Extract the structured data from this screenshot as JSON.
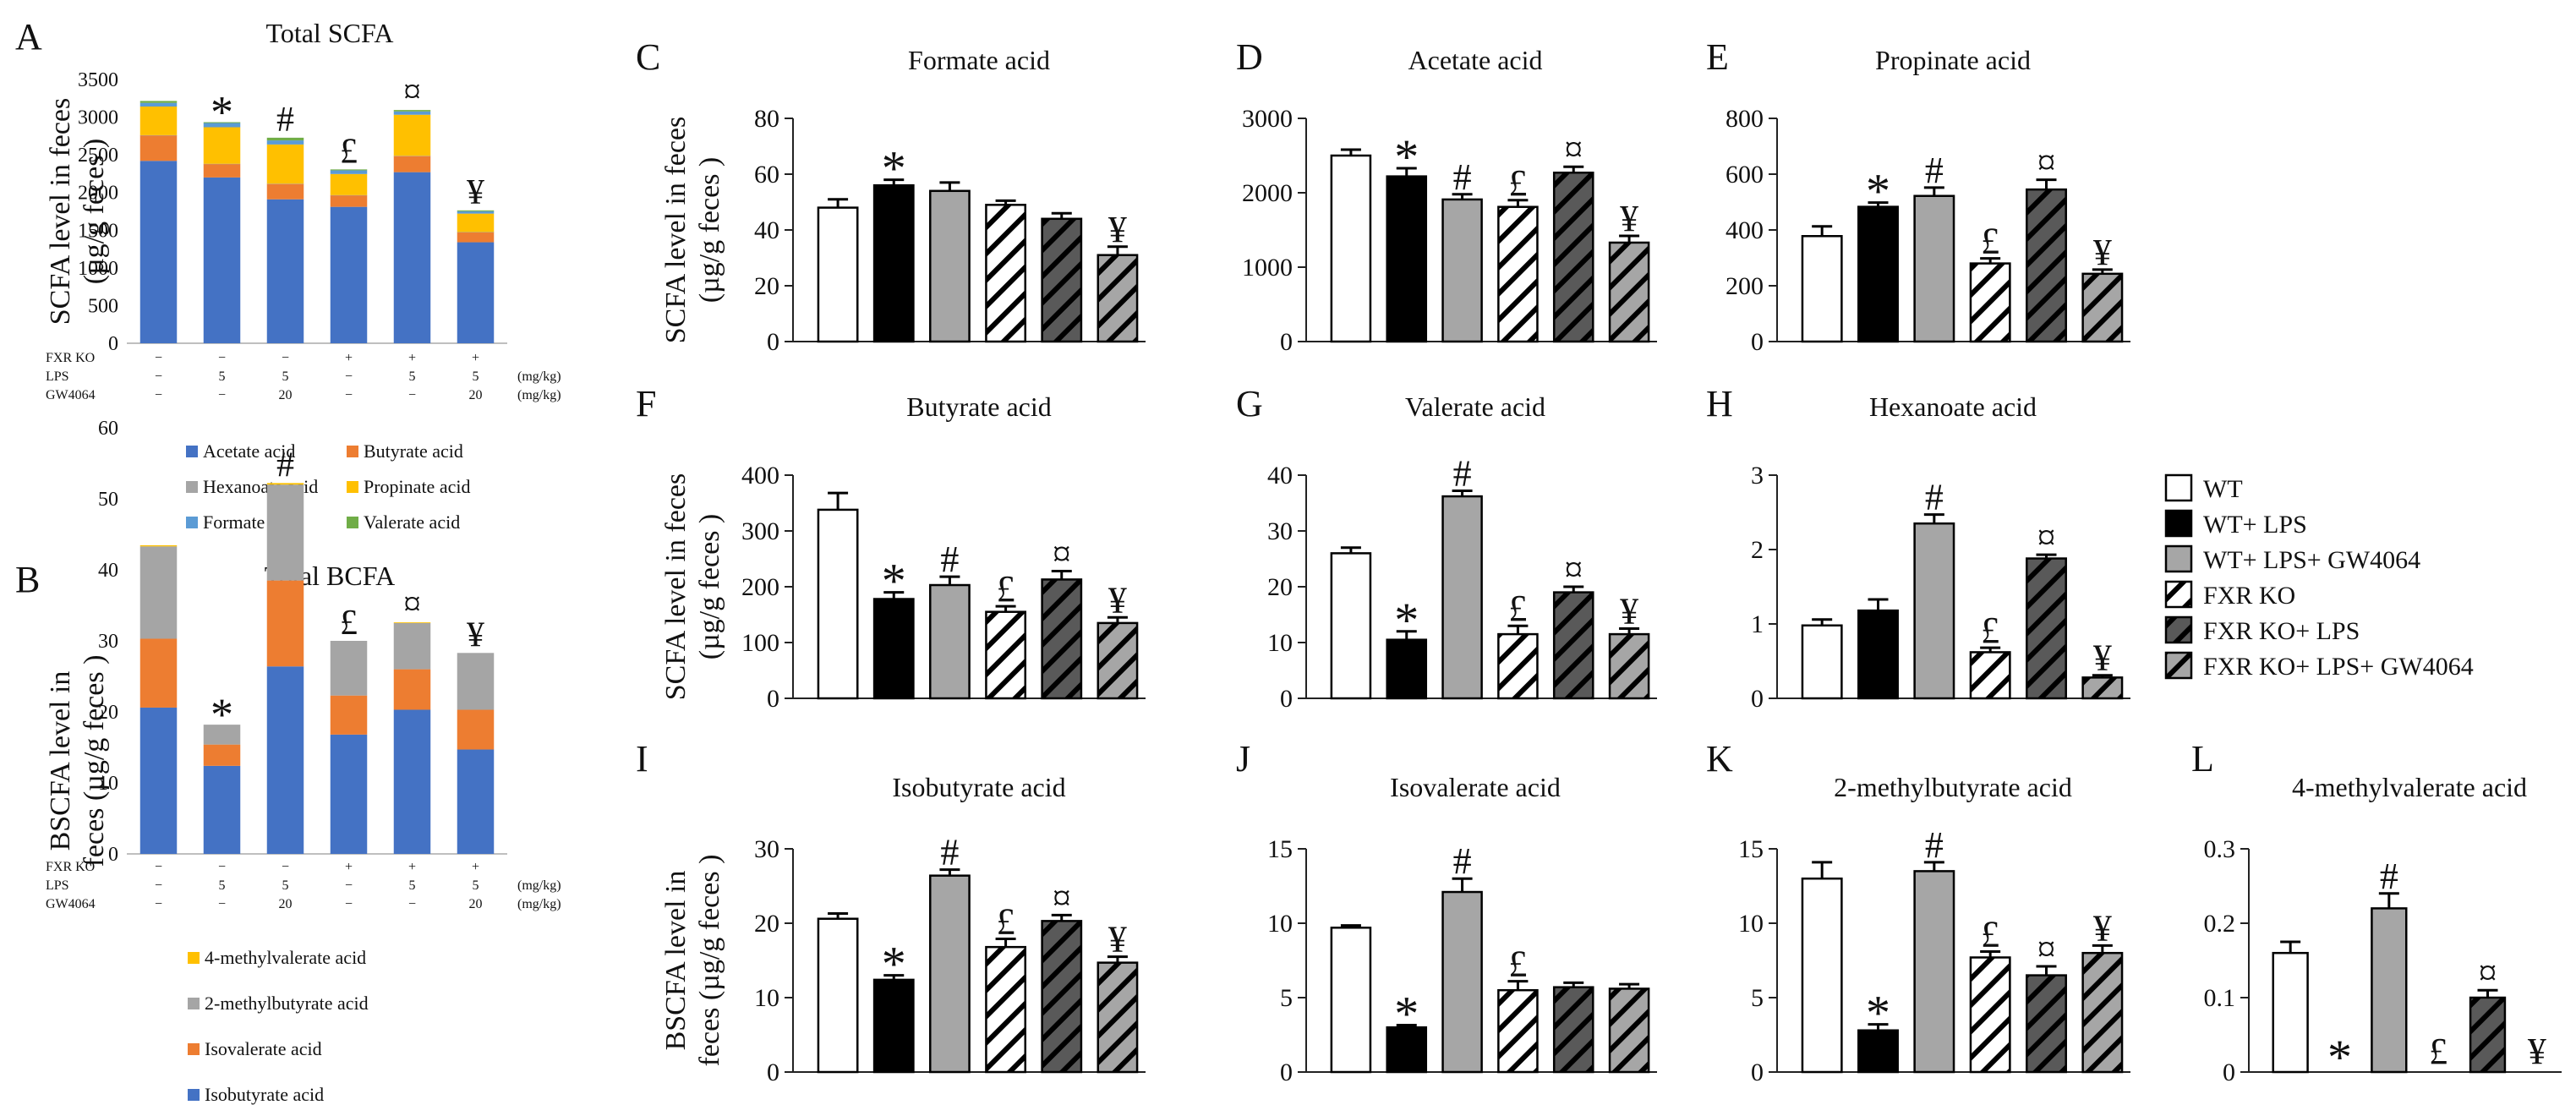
{
  "figure": {
    "panels": {
      "A": {
        "letter": "A",
        "title": "Total SCFA",
        "ylabel_lines": [
          "SCFA level in feces",
          "(µg/g feces )"
        ]
      },
      "B": {
        "letter": "B",
        "title": "Total BCFA",
        "ylabel_lines": [
          "BSCFA level in",
          "feces (µg/g feces )"
        ]
      },
      "C": {
        "letter": "C",
        "title": "Formate acid"
      },
      "D": {
        "letter": "D",
        "title": "Acetate acid"
      },
      "E": {
        "letter": "E",
        "title": "Propinate acid"
      },
      "F": {
        "letter": "F",
        "title": "Butyrate acid"
      },
      "G": {
        "letter": "G",
        "title": "Valerate acid"
      },
      "H": {
        "letter": "H",
        "title": "Hexanoate acid"
      },
      "I": {
        "letter": "I",
        "title": "Isobutyrate acid"
      },
      "J": {
        "letter": "J",
        "title": "Isovalerate acid"
      },
      "K": {
        "letter": "K",
        "title": "2-methylbutyrate acid"
      },
      "L": {
        "letter": "L",
        "title": "4-methylvalerate acid"
      }
    },
    "row_labels": {
      "scfa": [
        "SCFA level in feces",
        "(µg/g feces )"
      ],
      "bcfa": [
        "BSCFA level in",
        "feces (µg/g feces )"
      ]
    },
    "treatment_table": {
      "rows": [
        "FXR KO",
        "LPS",
        "GW4064"
      ],
      "units": [
        "",
        "(mg/kg)",
        "(mg/kg)"
      ],
      "values": [
        [
          "−",
          "−",
          "−",
          "+",
          "+",
          "+"
        ],
        [
          "−",
          "5",
          "5",
          "−",
          "5",
          "5"
        ],
        [
          "−",
          "−",
          "20",
          "−",
          "−",
          "20"
        ]
      ]
    },
    "legend_groups": [
      "WT",
      "WT+ LPS",
      "WT+ LPS+ GW4064",
      "FXR KO",
      "FXR KO+ LPS",
      "FXR KO+ LPS+ GW4064"
    ],
    "significance_marks": [
      "",
      "*",
      "#",
      "£",
      "¤",
      "¥"
    ]
  },
  "colors": {
    "acetate": "#4472c4",
    "butyrate": "#ed7d31",
    "hexanoate": "#a5a5a5",
    "propinate": "#ffc000",
    "formate": "#5b9bd5",
    "valerate": "#70ad47",
    "bar_black": "#000000",
    "bar_gray": "#a6a6a6",
    "bar_dark": "#595959"
  },
  "chart_data": [
    {
      "id": "A",
      "type": "bar",
      "stacked": true,
      "title": "Total SCFA",
      "xlabel": "",
      "ylabel": "SCFA level in feces (µg/g feces )",
      "ylim": [
        0,
        3500
      ],
      "yticks": [
        0,
        500,
        1000,
        1500,
        2000,
        2500,
        3000,
        3500
      ],
      "categories": [
        "WT",
        "WT+ LPS",
        "WT+ LPS+ GW4064",
        "FXR KO",
        "FXR KO+ LPS",
        "FXR KO+ LPS+ GW4064"
      ],
      "series": [
        {
          "name": "Acetate acid",
          "color_key": "acetate",
          "values": [
            2420,
            2200,
            1910,
            1810,
            2270,
            1340
          ]
        },
        {
          "name": "Butyrate acid",
          "color_key": "butyrate",
          "values": [
            340,
            180,
            205,
            155,
            215,
            135
          ]
        },
        {
          "name": "Hexanoate acid",
          "color_key": "hexanoate",
          "values": [
            1,
            1.2,
            2.3,
            0.6,
            1.9,
            0.3
          ]
        },
        {
          "name": "Propinate acid",
          "color_key": "propinate",
          "values": [
            380,
            485,
            520,
            280,
            545,
            245
          ]
        },
        {
          "name": "Formate acid",
          "color_key": "formate",
          "values": [
            48,
            56,
            54,
            49,
            44,
            31
          ]
        },
        {
          "name": "Valerate acid",
          "color_key": "valerate",
          "values": [
            26,
            11,
            36,
            12,
            19,
            12
          ]
        }
      ],
      "marks": [
        "",
        "*",
        "#",
        "£",
        "¤",
        "¥"
      ],
      "legend": [
        "Acetate acid",
        "Butyrate acid",
        "Hexanoate acid",
        "Propinate acid",
        "Formate acid",
        "Valerate acid"
      ]
    },
    {
      "id": "B",
      "type": "bar",
      "stacked": true,
      "title": "Total BCFA",
      "xlabel": "",
      "ylabel": "BSCFA level in feces (µg/g feces )",
      "ylim": [
        0,
        60
      ],
      "yticks": [
        0,
        10,
        20,
        30,
        40,
        50,
        60
      ],
      "categories": [
        "WT",
        "WT+ LPS",
        "WT+ LPS+ GW4064",
        "FXR KO",
        "FXR KO+ LPS",
        "FXR KO+ LPS+ GW4064"
      ],
      "series": [
        {
          "name": "Isobutyrate acid",
          "color_key": "acetate",
          "values": [
            20.6,
            12.4,
            26.4,
            16.8,
            20.3,
            14.7
          ]
        },
        {
          "name": "Isovalerate acid",
          "color_key": "butyrate",
          "values": [
            9.7,
            3.0,
            12.1,
            5.5,
            5.7,
            5.6
          ]
        },
        {
          "name": "2-methylbutyrate acid",
          "color_key": "hexanoate",
          "values": [
            13.0,
            2.8,
            13.5,
            7.7,
            6.5,
            8.0
          ]
        },
        {
          "name": "4-methylvalerate acid",
          "color_key": "propinate",
          "values": [
            0.16,
            0,
            0.22,
            0,
            0.1,
            0
          ]
        }
      ],
      "marks": [
        "",
        "*",
        "#",
        "£",
        "¤",
        "¥"
      ],
      "legend": [
        "4-methylvalerate acid",
        "2-methylbutyrate acid",
        "Isovalerate acid",
        "Isobutyrate acid"
      ]
    },
    {
      "id": "C",
      "type": "bar",
      "title": "Formate acid",
      "ylim": [
        0,
        80
      ],
      "yticks": [
        0,
        20,
        40,
        60,
        80
      ],
      "ylabel": "SCFA level in feces (µg/g feces )",
      "categories": [
        "WT",
        "WT+ LPS",
        "WT+ LPS+ GW4064",
        "FXR KO",
        "FXR KO+ LPS",
        "FXR KO+ LPS+ GW4064"
      ],
      "values": [
        48,
        56,
        54,
        49,
        44,
        31
      ],
      "errors": [
        3,
        2,
        3,
        1.5,
        2,
        3
      ],
      "marks": [
        "",
        "*",
        "",
        "",
        "",
        "¥"
      ]
    },
    {
      "id": "D",
      "type": "bar",
      "title": "Acetate acid",
      "ylim": [
        0,
        3000
      ],
      "yticks": [
        0,
        1000,
        2000,
        3000
      ],
      "categories": [
        "WT",
        "WT+ LPS",
        "WT+ LPS+ GW4064",
        "FXR KO",
        "FXR KO+ LPS",
        "FXR KO+ LPS+ GW4064"
      ],
      "values": [
        2500,
        2220,
        1910,
        1810,
        2270,
        1330
      ],
      "errors": [
        80,
        110,
        70,
        90,
        80,
        90
      ],
      "marks": [
        "",
        "*",
        "#",
        "£",
        "¤",
        "¥"
      ]
    },
    {
      "id": "E",
      "type": "bar",
      "title": "Propinate acid",
      "ylim": [
        0,
        800
      ],
      "yticks": [
        0,
        200,
        400,
        600,
        800
      ],
      "categories": [
        "WT",
        "WT+ LPS",
        "WT+ LPS+ GW4064",
        "FXR KO",
        "FXR KO+ LPS",
        "FXR KO+ LPS+ GW4064"
      ],
      "values": [
        378,
        483,
        522,
        280,
        545,
        243
      ],
      "errors": [
        35,
        15,
        30,
        18,
        35,
        15
      ],
      "marks": [
        "",
        "*",
        "#",
        "£",
        "¤",
        "¥"
      ]
    },
    {
      "id": "F",
      "type": "bar",
      "title": "Butyrate acid",
      "ylim": [
        0,
        400
      ],
      "yticks": [
        0,
        100,
        200,
        300,
        400
      ],
      "ylabel": "SCFA level in feces (µg/g feces )",
      "categories": [
        "WT",
        "WT+ LPS",
        "WT+ LPS+ GW4064",
        "FXR KO",
        "FXR KO+ LPS",
        "FXR KO+ LPS+ GW4064"
      ],
      "values": [
        338,
        178,
        203,
        155,
        213,
        135
      ],
      "errors": [
        30,
        12,
        15,
        10,
        15,
        10
      ],
      "marks": [
        "",
        "*",
        "#",
        "£",
        "¤",
        "¥"
      ]
    },
    {
      "id": "G",
      "type": "bar",
      "title": "Valerate acid",
      "ylim": [
        0,
        40
      ],
      "yticks": [
        0,
        10,
        20,
        30,
        40
      ],
      "categories": [
        "WT",
        "WT+ LPS",
        "WT+ LPS+ GW4064",
        "FXR KO",
        "FXR KO+ LPS",
        "FXR KO+ LPS+ GW4064"
      ],
      "values": [
        26,
        10.5,
        36.2,
        11.5,
        19,
        11.5
      ],
      "errors": [
        1,
        1.5,
        1,
        1.5,
        1,
        1
      ],
      "marks": [
        "",
        "*",
        "#",
        "£",
        "¤",
        "¥"
      ]
    },
    {
      "id": "H",
      "type": "bar",
      "title": "Hexanoate acid",
      "ylim": [
        0,
        3
      ],
      "yticks": [
        0,
        1,
        2,
        3
      ],
      "categories": [
        "WT",
        "WT+ LPS",
        "WT+ LPS+ GW4064",
        "FXR KO",
        "FXR KO+ LPS",
        "FXR KO+ LPS+ GW4064"
      ],
      "values": [
        0.98,
        1.18,
        2.35,
        0.62,
        1.88,
        0.28
      ],
      "errors": [
        0.08,
        0.15,
        0.12,
        0.06,
        0.05,
        0.03
      ],
      "marks": [
        "",
        "",
        "#",
        "£",
        "¤",
        "¥"
      ]
    },
    {
      "id": "I",
      "type": "bar",
      "title": "Isobutyrate acid",
      "ylim": [
        0,
        30
      ],
      "yticks": [
        0,
        10,
        20,
        30
      ],
      "ylabel": "BSCFA level in feces (µg/g feces )",
      "categories": [
        "WT",
        "WT+ LPS",
        "WT+ LPS+ GW4064",
        "FXR KO",
        "FXR KO+ LPS",
        "FXR KO+ LPS+ GW4064"
      ],
      "values": [
        20.6,
        12.4,
        26.4,
        16.8,
        20.3,
        14.7
      ],
      "errors": [
        0.7,
        0.6,
        0.8,
        1.1,
        0.8,
        0.8
      ],
      "marks": [
        "",
        "*",
        "#",
        "£",
        "¤",
        "¥"
      ]
    },
    {
      "id": "J",
      "type": "bar",
      "title": "Isovalerate acid",
      "ylim": [
        0,
        15
      ],
      "yticks": [
        0,
        5,
        10,
        15
      ],
      "categories": [
        "WT",
        "WT+ LPS",
        "WT+ LPS+ GW4064",
        "FXR KO",
        "FXR KO+ LPS",
        "FXR KO+ LPS+ GW4064"
      ],
      "values": [
        9.7,
        3.0,
        12.1,
        5.5,
        5.7,
        5.6
      ],
      "errors": [
        0.15,
        0.15,
        0.9,
        0.6,
        0.3,
        0.3
      ],
      "marks": [
        "",
        "*",
        "#",
        "£",
        "",
        ""
      ]
    },
    {
      "id": "K",
      "type": "bar",
      "title": "2-methylbutyrate acid",
      "ylim": [
        0,
        15
      ],
      "yticks": [
        0,
        5,
        10,
        15
      ],
      "categories": [
        "WT",
        "WT+ LPS",
        "WT+ LPS+ GW4064",
        "FXR KO",
        "FXR KO+ LPS",
        "FXR KO+ LPS+ GW4064"
      ],
      "values": [
        13.0,
        2.8,
        13.5,
        7.7,
        6.5,
        8.0
      ],
      "errors": [
        1.1,
        0.4,
        0.6,
        0.4,
        0.6,
        0.5
      ],
      "marks": [
        "",
        "*",
        "#",
        "£",
        "¤",
        "¥"
      ]
    },
    {
      "id": "L",
      "type": "bar",
      "title": "4-methylvalerate acid",
      "ylim": [
        0,
        0.3
      ],
      "yticks": [
        0,
        0.1,
        0.2,
        0.3
      ],
      "categories": [
        "WT",
        "WT+ LPS",
        "WT+ LPS+ GW4064",
        "FXR KO",
        "FXR KO+ LPS",
        "FXR KO+ LPS+ GW4064"
      ],
      "values": [
        0.16,
        0,
        0.22,
        0,
        0.1,
        0
      ],
      "errors": [
        0.015,
        0,
        0.02,
        0,
        0.01,
        0
      ],
      "marks": [
        "",
        "*",
        "#",
        "£",
        "¤",
        "¥"
      ]
    }
  ]
}
